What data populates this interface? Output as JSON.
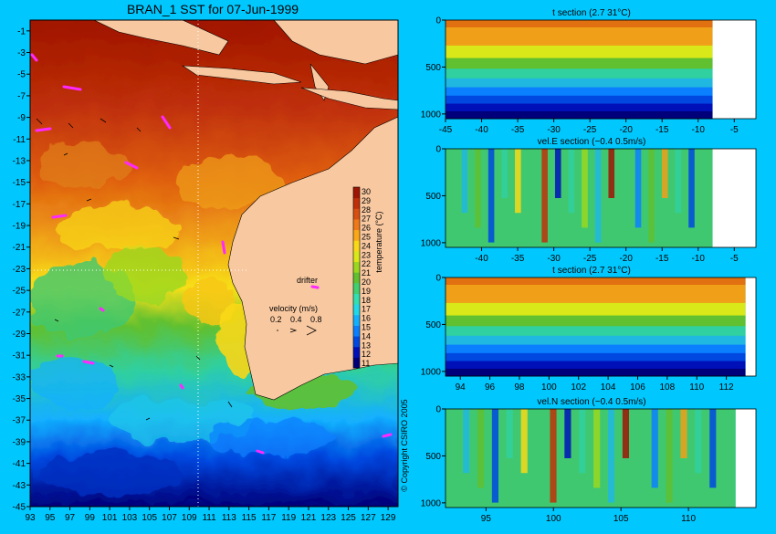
{
  "colors": {
    "background": "#00c8ff",
    "land": "#f8c8a0",
    "no_data": "#ffffff",
    "drifter": "#ff28ff",
    "colormap": [
      "#00007a",
      "#0010b8",
      "#0048e0",
      "#0a80ff",
      "#14b0ff",
      "#20d8e8",
      "#30e0b0",
      "#40d070",
      "#60c030",
      "#9ad820",
      "#d8e818",
      "#f8d818",
      "#f8a818",
      "#f07818",
      "#d85010",
      "#c03008",
      "#a01404"
    ]
  },
  "map": {
    "title": "BRAN_1 SST for 07-Jun-1999",
    "x_ticks": [
      "93",
      "95",
      "97",
      "99",
      "101",
      "103",
      "105",
      "107",
      "109",
      "111",
      "113",
      "115",
      "117",
      "119",
      "121",
      "123",
      "125",
      "127",
      "129"
    ],
    "y_ticks": [
      "-1",
      "-3",
      "-5",
      "-7",
      "-9",
      "-11",
      "-13",
      "-15",
      "-17",
      "-19",
      "-21",
      "-23",
      "-25",
      "-27",
      "-29",
      "-31",
      "-33",
      "-35",
      "-37",
      "-39",
      "-41",
      "-43",
      "-45"
    ],
    "xlim": [
      93,
      130
    ],
    "ylim": [
      -45,
      0
    ],
    "colorbar": {
      "label": "temperature (°C)",
      "ticks": [
        "11",
        "12",
        "13",
        "14",
        "15",
        "16",
        "17",
        "18",
        "19",
        "20",
        "21",
        "22",
        "23",
        "24",
        "25",
        "26",
        "27",
        "28",
        "29",
        "30"
      ]
    },
    "drifter_label": "drifter",
    "velocity_label": "velocity (m/s)",
    "velocity_ticks": [
      "0.2",
      "0.4",
      "0.8"
    ],
    "copyright": "© Copyright CSIRO 2005"
  },
  "sections": [
    {
      "name": "t-section-lat",
      "title": "t section (2.7      31°C)",
      "x_ticks": [
        "-45",
        "-40",
        "-35",
        "-30",
        "-25",
        "-20",
        "-15",
        "-10",
        "-5"
      ],
      "xlim": [
        -45,
        -2
      ],
      "y_ticks": [
        "0",
        "500",
        "1000"
      ],
      "ylim": [
        0,
        1050
      ],
      "land_from": -8,
      "kind": "temperature"
    },
    {
      "name": "vel-e-section",
      "title": "vel.E section (−0.4      0.5m/s)",
      "x_ticks": [
        "-40",
        "-35",
        "-30",
        "-25",
        "-20",
        "-15",
        "-10",
        "-5"
      ],
      "xlim": [
        -45,
        -2
      ],
      "y_ticks": [
        "0",
        "500",
        "1000"
      ],
      "ylim": [
        0,
        1050
      ],
      "land_from": -8,
      "kind": "velocity"
    },
    {
      "name": "t-section-lon",
      "title": "t section (2.7      31°C)",
      "x_ticks": [
        "94",
        "96",
        "98",
        "100",
        "102",
        "104",
        "106",
        "108",
        "110",
        "112"
      ],
      "xlim": [
        93,
        114
      ],
      "y_ticks": [
        "0",
        "500",
        "1000"
      ],
      "ylim": [
        0,
        1050
      ],
      "land_from": 113.3,
      "kind": "temperature"
    },
    {
      "name": "vel-n-section",
      "title": "vel.N section (−0.4      0.5m/s)",
      "x_ticks": [
        "95",
        "100",
        "105",
        "110"
      ],
      "xlim": [
        92,
        115
      ],
      "y_ticks": [
        "0",
        "500",
        "1000"
      ],
      "ylim": [
        0,
        1050
      ],
      "land_from": 113.5,
      "kind": "velocity"
    }
  ]
}
